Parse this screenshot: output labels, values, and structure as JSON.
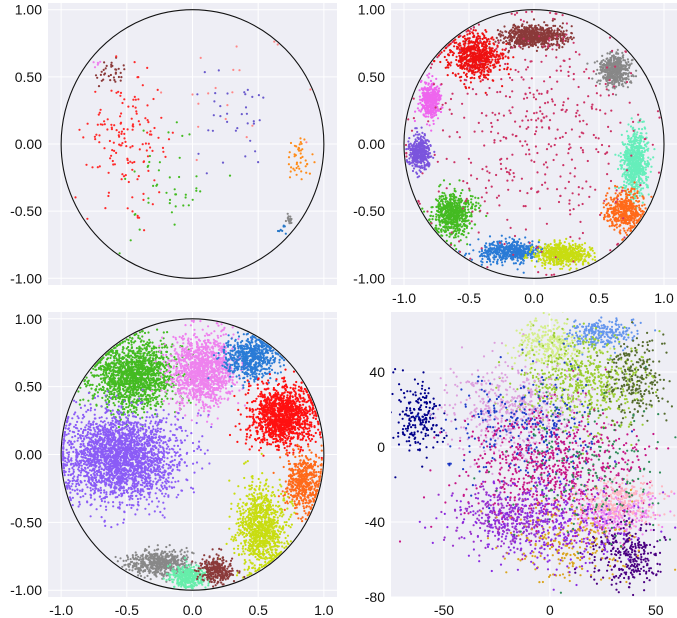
{
  "chart_data": [
    {
      "type": "scatter",
      "panel": "top-left",
      "title": "",
      "xlabel": "",
      "ylabel": "",
      "xlim": [
        -1.1,
        1.1
      ],
      "ylim": [
        -1.05,
        1.05
      ],
      "xticks": [],
      "yticks": [
        "1.00",
        "0.50",
        "0.00",
        "-0.50",
        "-1.00"
      ],
      "grid": true,
      "legend": "none",
      "boundary_circle": {
        "center": [
          0,
          0
        ],
        "radius": 1.0
      },
      "clusters": [
        {
          "color": "#ee82ee",
          "center": [
            -0.74,
            0.6
          ],
          "spread": [
            0.02,
            0.02
          ],
          "count": 6
        },
        {
          "color": "#8b3a3a",
          "center": [
            -0.62,
            0.52
          ],
          "spread": [
            0.08,
            0.05
          ],
          "count": 35
        },
        {
          "color": "#ff2a2a",
          "center": [
            -0.5,
            0.05
          ],
          "spread": [
            0.15,
            0.22
          ],
          "count": 150
        },
        {
          "color": "#44bb22",
          "center": [
            -0.2,
            -0.35
          ],
          "spread": [
            0.22,
            0.2
          ],
          "count": 45
        },
        {
          "color": "#6a5acd",
          "center": [
            0.3,
            0.15
          ],
          "spread": [
            0.15,
            0.18
          ],
          "count": 35
        },
        {
          "color": "#ff8c1a",
          "center": [
            0.82,
            -0.1
          ],
          "spread": [
            0.05,
            0.08
          ],
          "count": 45
        },
        {
          "color": "#888888",
          "center": [
            0.74,
            -0.56
          ],
          "spread": [
            0.02,
            0.02
          ],
          "count": 20
        },
        {
          "color": "#2878c8",
          "center": [
            0.68,
            -0.64
          ],
          "spread": [
            0.02,
            0.02
          ],
          "count": 8
        },
        {
          "color": "#ff8888",
          "center": [
            0.3,
            0.4
          ],
          "spread": [
            0.3,
            0.2
          ],
          "count": 20
        }
      ]
    },
    {
      "type": "scatter",
      "panel": "top-right",
      "title": "",
      "xlabel": "",
      "ylabel": "",
      "xlim": [
        -1.1,
        1.1
      ],
      "ylim": [
        -1.05,
        1.05
      ],
      "xticks": [
        "-1.0",
        "-0.5",
        "0.0",
        "0.5",
        "1.0"
      ],
      "yticks": [
        "1.00",
        "0.50",
        "0.00",
        "-0.50",
        "-1.00"
      ],
      "grid": true,
      "legend": "none",
      "boundary_circle": {
        "center": [
          0,
          0
        ],
        "radius": 1.0
      },
      "clusters": [
        {
          "color": "#8b3a3a",
          "center": [
            0.0,
            0.8
          ],
          "spread": [
            0.12,
            0.04
          ],
          "count": 700
        },
        {
          "color": "#ee1111",
          "center": [
            -0.45,
            0.65
          ],
          "spread": [
            0.1,
            0.08
          ],
          "count": 700
        },
        {
          "color": "#888888",
          "center": [
            0.62,
            0.55
          ],
          "spread": [
            0.06,
            0.06
          ],
          "count": 500
        },
        {
          "color": "#ee66ee",
          "center": [
            -0.8,
            0.32
          ],
          "spread": [
            0.04,
            0.07
          ],
          "count": 400
        },
        {
          "color": "#7b55dd",
          "center": [
            -0.88,
            -0.07
          ],
          "spread": [
            0.04,
            0.06
          ],
          "count": 400
        },
        {
          "color": "#66eebb",
          "center": [
            0.78,
            -0.15
          ],
          "spread": [
            0.05,
            0.12
          ],
          "count": 700
        },
        {
          "color": "#ff6a1a",
          "center": [
            0.7,
            -0.5
          ],
          "spread": [
            0.07,
            0.07
          ],
          "count": 450
        },
        {
          "color": "#44bb22",
          "center": [
            -0.62,
            -0.52
          ],
          "spread": [
            0.08,
            0.08
          ],
          "count": 600
        },
        {
          "color": "#2a7bd6",
          "center": [
            -0.18,
            -0.8
          ],
          "spread": [
            0.12,
            0.04
          ],
          "count": 500
        },
        {
          "color": "#c8dd11",
          "center": [
            0.22,
            -0.82
          ],
          "spread": [
            0.1,
            0.04
          ],
          "count": 550
        },
        {
          "color": "#cc3366",
          "center": [
            0.0,
            0.1
          ],
          "spread": [
            0.45,
            0.45
          ],
          "count": 450
        }
      ]
    },
    {
      "type": "scatter",
      "panel": "bottom-left",
      "title": "",
      "xlabel": "",
      "ylabel": "",
      "xlim": [
        -1.1,
        1.1
      ],
      "ylim": [
        -1.05,
        1.05
      ],
      "xticks": [
        "-1.0",
        "-0.5",
        "0.0",
        "0.5",
        "1.0"
      ],
      "yticks": [
        "1.00",
        "0.50",
        "0.00",
        "-0.50",
        "-1.00"
      ],
      "grid": true,
      "legend": "none",
      "boundary_circle": {
        "center": [
          0,
          0
        ],
        "radius": 1.0
      },
      "clusters": [
        {
          "color": "#44bb22",
          "center": [
            -0.45,
            0.58
          ],
          "spread": [
            0.16,
            0.13
          ],
          "count": 1500
        },
        {
          "color": "#ee82ee",
          "center": [
            0.08,
            0.62
          ],
          "spread": [
            0.12,
            0.13
          ],
          "count": 1300
        },
        {
          "color": "#2a7bd6",
          "center": [
            0.45,
            0.72
          ],
          "spread": [
            0.1,
            0.08
          ],
          "count": 600
        },
        {
          "color": "#ff1111",
          "center": [
            0.68,
            0.28
          ],
          "spread": [
            0.12,
            0.11
          ],
          "count": 1300
        },
        {
          "color": "#8b5cf6",
          "center": [
            -0.55,
            -0.02
          ],
          "spread": [
            0.22,
            0.16
          ],
          "count": 2500
        },
        {
          "color": "#ff6a1a",
          "center": [
            0.85,
            -0.2
          ],
          "spread": [
            0.07,
            0.1
          ],
          "count": 500
        },
        {
          "color": "#c8dd11",
          "center": [
            0.52,
            -0.55
          ],
          "spread": [
            0.09,
            0.16
          ],
          "count": 1000
        },
        {
          "color": "#888888",
          "center": [
            -0.25,
            -0.8
          ],
          "spread": [
            0.12,
            0.05
          ],
          "count": 500
        },
        {
          "color": "#66eeaa",
          "center": [
            -0.03,
            -0.9
          ],
          "spread": [
            0.07,
            0.04
          ],
          "count": 350
        },
        {
          "color": "#8b3a3a",
          "center": [
            0.18,
            -0.85
          ],
          "spread": [
            0.06,
            0.05
          ],
          "count": 300
        }
      ]
    },
    {
      "type": "scatter",
      "panel": "bottom-right",
      "title": "",
      "xlabel": "",
      "ylabel": "",
      "xlim": [
        -75,
        60
      ],
      "ylim": [
        -80,
        72
      ],
      "xticks": [
        "-50",
        "0",
        "50"
      ],
      "yticks": [
        "40",
        "0",
        "-40",
        "-80"
      ],
      "grid": true,
      "legend": "none",
      "clusters": [
        {
          "color": "#00008b",
          "center": [
            -62,
            15
          ],
          "spread": [
            6,
            10
          ],
          "count": 200
        },
        {
          "color": "#d4ee88",
          "center": [
            0,
            55
          ],
          "spread": [
            8,
            6
          ],
          "count": 300
        },
        {
          "color": "#6495ed",
          "center": [
            25,
            60
          ],
          "spread": [
            8,
            4
          ],
          "count": 250
        },
        {
          "color": "#9acd32",
          "center": [
            15,
            35
          ],
          "spread": [
            15,
            12
          ],
          "count": 600
        },
        {
          "color": "#556b2f",
          "center": [
            40,
            35
          ],
          "spread": [
            8,
            12
          ],
          "count": 250
        },
        {
          "color": "#dda0dd",
          "center": [
            -20,
            20
          ],
          "spread": [
            15,
            12
          ],
          "count": 500
        },
        {
          "color": "#1e3cc8",
          "center": [
            -10,
            10
          ],
          "spread": [
            18,
            15
          ],
          "count": 300
        },
        {
          "color": "#c71585",
          "center": [
            0,
            -10
          ],
          "spread": [
            22,
            15
          ],
          "count": 700
        },
        {
          "color": "#9932cc",
          "center": [
            -20,
            -38
          ],
          "spread": [
            12,
            8
          ],
          "count": 300
        },
        {
          "color": "#ee82ee",
          "center": [
            30,
            -35
          ],
          "spread": [
            10,
            6
          ],
          "count": 300
        },
        {
          "color": "#ffb6c1",
          "center": [
            35,
            -28
          ],
          "spread": [
            10,
            6
          ],
          "count": 250
        },
        {
          "color": "#4b0082",
          "center": [
            35,
            -58
          ],
          "spread": [
            8,
            8
          ],
          "count": 300
        },
        {
          "color": "#daa520",
          "center": [
            10,
            -50
          ],
          "spread": [
            15,
            10
          ],
          "count": 250
        },
        {
          "color": "#8a2be2",
          "center": [
            0,
            -40
          ],
          "spread": [
            20,
            12
          ],
          "count": 400
        },
        {
          "color": "#2e8b57",
          "center": [
            20,
            -10
          ],
          "spread": [
            20,
            20
          ],
          "count": 200
        }
      ]
    }
  ]
}
